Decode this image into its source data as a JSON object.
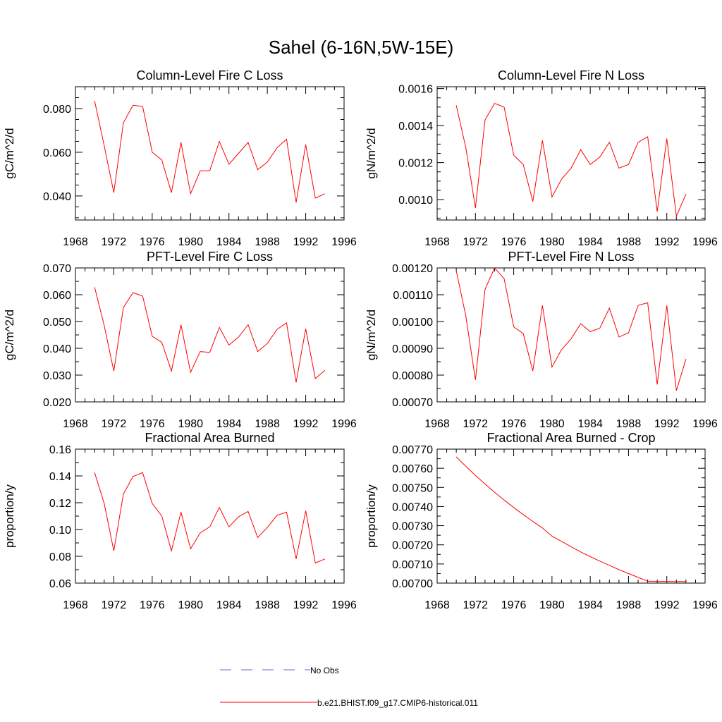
{
  "title": "Sahel (6-16N,5W-15E)",
  "colors": {
    "model": "#ff0000",
    "obs": "#6b6bc8"
  },
  "legend": [
    {
      "label": "No Obs",
      "style": "dashed",
      "color": "#6b6bc8"
    },
    {
      "label": "b.e21.BHIST.f09_g17.CMIP6-historical.011",
      "style": "solid",
      "color": "#ff0000"
    }
  ],
  "chart_data": [
    {
      "type": "line",
      "title": "Column-Level Fire C Loss",
      "ylabel": "gC/m^2/d",
      "xlabel": "",
      "xlim": [
        1968,
        1996
      ],
      "ylim": [
        0.029,
        0.09
      ],
      "xticks": [
        1968,
        1972,
        1976,
        1980,
        1984,
        1988,
        1992,
        1996
      ],
      "yticks": [
        0.04,
        0.06,
        0.08
      ],
      "ytick_labels": [
        "0.040",
        "0.060",
        "0.080"
      ],
      "yminor": [
        0.03,
        0.035,
        0.045,
        0.05,
        0.055,
        0.065,
        0.07,
        0.075,
        0.085,
        0.09
      ],
      "x": [
        1970,
        1971,
        1972,
        1973,
        1974,
        1975,
        1976,
        1977,
        1978,
        1979,
        1980,
        1981,
        1982,
        1983,
        1984,
        1985,
        1986,
        1987,
        1988,
        1989,
        1990,
        1991,
        1992,
        1993,
        1994
      ],
      "series": [
        {
          "values": [
            0.0835,
            0.063,
            0.0415,
            0.0735,
            0.0815,
            0.081,
            0.06,
            0.0565,
            0.0415,
            0.0645,
            0.041,
            0.0515,
            0.0515,
            0.065,
            0.0545,
            0.0595,
            0.0645,
            0.052,
            0.0555,
            0.062,
            0.066,
            0.037,
            0.0635,
            0.039,
            0.041
          ]
        }
      ]
    },
    {
      "type": "line",
      "title": "Column-Level Fire N Loss",
      "ylabel": "gN/m^2/d",
      "xlabel": "",
      "xlim": [
        1968,
        1996
      ],
      "ylim": [
        0.00089,
        0.00161
      ],
      "xticks": [
        1968,
        1972,
        1976,
        1980,
        1984,
        1988,
        1992,
        1996
      ],
      "yticks": [
        0.001,
        0.0012,
        0.0014,
        0.0016
      ],
      "ytick_labels": [
        "0.0010",
        "0.0012",
        "0.0014",
        "0.0016"
      ],
      "yminor": [
        0.0009,
        0.00095,
        0.00105,
        0.0011,
        0.00115,
        0.00125,
        0.0013,
        0.00135,
        0.00145,
        0.0015,
        0.00155
      ],
      "x": [
        1970,
        1971,
        1972,
        1973,
        1974,
        1975,
        1976,
        1977,
        1978,
        1979,
        1980,
        1981,
        1982,
        1983,
        1984,
        1985,
        1986,
        1987,
        1988,
        1989,
        1990,
        1991,
        1992,
        1993,
        1994
      ],
      "series": [
        {
          "values": [
            0.00151,
            0.00128,
            0.000955,
            0.00143,
            0.00152,
            0.0015,
            0.00124,
            0.00119,
            0.00099,
            0.00132,
            0.001015,
            0.00111,
            0.00117,
            0.00127,
            0.00119,
            0.00123,
            0.00131,
            0.00117,
            0.00119,
            0.00131,
            0.00134,
            0.000935,
            0.00133,
            0.00091,
            0.00103
          ]
        }
      ]
    },
    {
      "type": "line",
      "title": "PFT-Level Fire C Loss",
      "ylabel": "gC/m^2/d",
      "xlabel": "",
      "xlim": [
        1968,
        1996
      ],
      "ylim": [
        0.02,
        0.07
      ],
      "xticks": [
        1968,
        1972,
        1976,
        1980,
        1984,
        1988,
        1992,
        1996
      ],
      "yticks": [
        0.02,
        0.03,
        0.04,
        0.05,
        0.06,
        0.07
      ],
      "ytick_labels": [
        "0.020",
        "0.030",
        "0.040",
        "0.050",
        "0.060",
        "0.070"
      ],
      "yminor": [
        0.025,
        0.035,
        0.045,
        0.055,
        0.065
      ],
      "x": [
        1970,
        1971,
        1972,
        1973,
        1974,
        1975,
        1976,
        1977,
        1978,
        1979,
        1980,
        1981,
        1982,
        1983,
        1984,
        1985,
        1986,
        1987,
        1988,
        1989,
        1990,
        1991,
        1992,
        1993,
        1994
      ],
      "series": [
        {
          "values": [
            0.0628,
            0.0485,
            0.0315,
            0.0552,
            0.0608,
            0.0595,
            0.0445,
            0.0422,
            0.0315,
            0.0488,
            0.031,
            0.0388,
            0.0385,
            0.0478,
            0.0412,
            0.0442,
            0.0488,
            0.0388,
            0.0418,
            0.047,
            0.0495,
            0.0273,
            0.0473,
            0.0287,
            0.0318
          ]
        }
      ]
    },
    {
      "type": "line",
      "title": "PFT-Level Fire N Loss",
      "ylabel": "gN/m^2/d",
      "xlabel": "",
      "xlim": [
        1968,
        1996
      ],
      "ylim": [
        0.0007,
        0.0012
      ],
      "xticks": [
        1968,
        1972,
        1976,
        1980,
        1984,
        1988,
        1992,
        1996
      ],
      "yticks": [
        0.0007,
        0.0008,
        0.0009,
        0.001,
        0.0011,
        0.0012
      ],
      "ytick_labels": [
        "0.00070",
        "0.00080",
        "0.00090",
        "0.00100",
        "0.00110",
        "0.00120"
      ],
      "yminor": [
        0.00075,
        0.00085,
        0.00095,
        0.00105,
        0.00115
      ],
      "x": [
        1970,
        1971,
        1972,
        1973,
        1974,
        1975,
        1976,
        1977,
        1978,
        1979,
        1980,
        1981,
        1982,
        1983,
        1984,
        1985,
        1986,
        1987,
        1988,
        1989,
        1990,
        1991,
        1992,
        1993,
        1994
      ],
      "series": [
        {
          "values": [
            0.00119,
            0.00102,
            0.000782,
            0.00112,
            0.0012,
            0.00116,
            0.00098,
            0.000955,
            0.000815,
            0.00106,
            0.00083,
            0.000895,
            0.000935,
            0.000992,
            0.000962,
            0.000975,
            0.00105,
            0.000942,
            0.000958,
            0.00106,
            0.00107,
            0.000765,
            0.00106,
            0.000742,
            0.00086
          ]
        }
      ]
    },
    {
      "type": "line",
      "title": "Fractional Area Burned",
      "ylabel": "proportion/y",
      "xlabel": "",
      "xlim": [
        1968,
        1996
      ],
      "ylim": [
        0.06,
        0.16
      ],
      "xticks": [
        1968,
        1972,
        1976,
        1980,
        1984,
        1988,
        1992,
        1996
      ],
      "yticks": [
        0.06,
        0.08,
        0.1,
        0.12,
        0.14,
        0.16
      ],
      "ytick_labels": [
        "0.06",
        "0.08",
        "0.10",
        "0.12",
        "0.14",
        "0.16"
      ],
      "yminor": [
        0.07,
        0.09,
        0.11,
        0.13,
        0.15
      ],
      "x": [
        1970,
        1971,
        1972,
        1973,
        1974,
        1975,
        1976,
        1977,
        1978,
        1979,
        1980,
        1981,
        1982,
        1983,
        1984,
        1985,
        1986,
        1987,
        1988,
        1989,
        1990,
        1991,
        1992,
        1993,
        1994
      ],
      "series": [
        {
          "values": [
            0.1425,
            0.1195,
            0.084,
            0.1265,
            0.1395,
            0.1425,
            0.1195,
            0.11,
            0.084,
            0.113,
            0.0855,
            0.0975,
            0.102,
            0.1165,
            0.102,
            0.1095,
            0.1135,
            0.094,
            0.1015,
            0.1105,
            0.113,
            0.078,
            0.114,
            0.075,
            0.078
          ]
        }
      ]
    },
    {
      "type": "line",
      "title": "Fractional Area Burned - Crop",
      "ylabel": "proportion/y",
      "xlabel": "",
      "xlim": [
        1968,
        1996
      ],
      "ylim": [
        0.007,
        0.0077
      ],
      "xticks": [
        1968,
        1972,
        1976,
        1980,
        1984,
        1988,
        1992,
        1996
      ],
      "yticks": [
        0.007,
        0.0071,
        0.0072,
        0.0073,
        0.0074,
        0.0075,
        0.0076,
        0.0077
      ],
      "ytick_labels": [
        "0.00700",
        "0.00710",
        "0.00720",
        "0.00730",
        "0.00740",
        "0.00750",
        "0.00760",
        "0.00770"
      ],
      "yminor": [
        0.00705,
        0.00715,
        0.00725,
        0.00735,
        0.00745,
        0.00755,
        0.00765
      ],
      "x": [
        1970,
        1971,
        1972,
        1973,
        1974,
        1975,
        1976,
        1977,
        1978,
        1979,
        1980,
        1981,
        1982,
        1983,
        1984,
        1985,
        1986,
        1987,
        1988,
        1989,
        1990,
        1991,
        1992,
        1993,
        1994
      ],
      "series": [
        {
          "values": [
            0.00766,
            0.00761,
            0.007563,
            0.007518,
            0.007475,
            0.007434,
            0.007395,
            0.007358,
            0.007322,
            0.007288,
            0.007245,
            0.007218,
            0.00719,
            0.007163,
            0.007138,
            0.007115,
            0.007093,
            0.00707,
            0.00705,
            0.00703,
            0.00701,
            0.007009,
            0.007009,
            0.007008,
            0.007008
          ]
        }
      ]
    }
  ]
}
